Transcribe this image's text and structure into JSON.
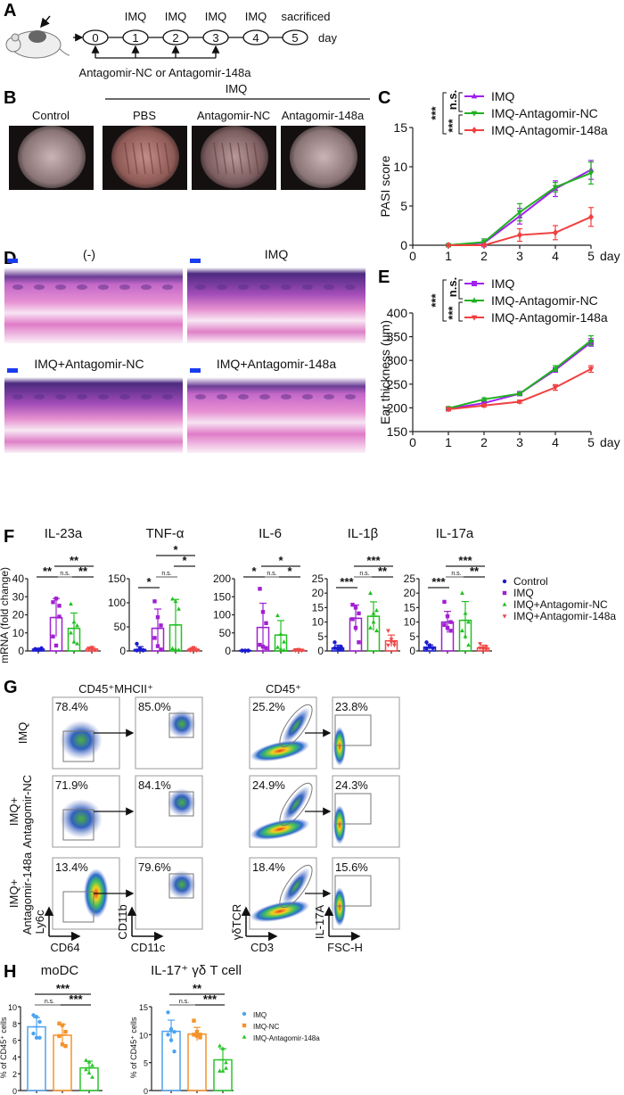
{
  "panel_labels": {
    "A": "A",
    "B": "B",
    "C": "C",
    "D": "D",
    "E": "E",
    "F": "F",
    "G": "G",
    "H": "H"
  },
  "panel_a": {
    "days": [
      "0",
      "1",
      "2",
      "3",
      "4",
      "5"
    ],
    "top_labels": [
      "IMQ",
      "IMQ",
      "IMQ",
      "IMQ",
      "sacrificed"
    ],
    "day_label": "day",
    "treatment_label": "Antagomir-NC or Antagomir-148a"
  },
  "panel_b": {
    "group_header": "IMQ",
    "photo_labels": [
      "Control",
      "PBS",
      "Antagomir-NC",
      "Antagomir-148a"
    ]
  },
  "panel_d": {
    "labels": [
      "(-)",
      "IMQ",
      "IMQ+Antagomir-NC",
      "IMQ+Antagomir-148a"
    ]
  },
  "panel_g": {
    "headers": [
      "CD45⁺MHCII⁺",
      "CD45⁺"
    ],
    "row_labels": [
      [
        "IMQ",
        ""
      ],
      [
        "IMQ+",
        "Antagomir-NC"
      ],
      [
        "IMQ+",
        "Antagomir-148a"
      ]
    ],
    "percentages": [
      [
        "78.4%",
        "85.0%",
        "25.2%",
        "23.8%"
      ],
      [
        "71.9%",
        "84.1%",
        "24.9%",
        "24.3%"
      ],
      [
        "13.4%",
        "79.6%",
        "18.4%",
        "15.6%"
      ]
    ],
    "axis_labels": [
      {
        "x": "CD64",
        "y": "Ly6c"
      },
      {
        "x": "CD11c",
        "y": "CD11b"
      },
      {
        "x": "CD3",
        "y": "γδTCR"
      },
      {
        "x": "FSC-H",
        "y": "IL-17A"
      }
    ]
  },
  "chart_data": [
    {
      "id": "C",
      "type": "line",
      "ylabel": "PASI score",
      "xlabel": "day",
      "x": [
        1,
        2,
        3,
        4,
        5
      ],
      "xlim": [
        0,
        5
      ],
      "xticks": [
        0,
        1,
        2,
        3,
        4,
        5
      ],
      "ylim": [
        0,
        15
      ],
      "yticks": [
        0,
        5,
        10,
        15
      ],
      "legend": "top-right",
      "significance": [
        "***",
        "n.s.",
        "***"
      ],
      "series": [
        {
          "name": "IMQ",
          "color": "#a020f0",
          "marker": "triangle-up",
          "values": [
            0,
            0.3,
            3.7,
            7.2,
            9.6
          ],
          "errors": [
            0.1,
            0.5,
            1.0,
            1.0,
            1.2
          ]
        },
        {
          "name": "IMQ-Antagomir-NC",
          "color": "#22b022",
          "marker": "triangle-down",
          "values": [
            0,
            0.4,
            4.2,
            7.4,
            9.2
          ],
          "errors": [
            0.2,
            0.4,
            1.1,
            0.6,
            1.4
          ]
        },
        {
          "name": "IMQ-Antagomir-148a",
          "color": "#f04040",
          "marker": "diamond",
          "values": [
            0,
            0,
            1.3,
            1.6,
            3.6
          ],
          "errors": [
            0,
            0,
            0.8,
            0.9,
            1.2
          ]
        }
      ]
    },
    {
      "id": "E",
      "type": "line",
      "ylabel": "Ear thickness (µm)",
      "xlabel": "day",
      "x": [
        1,
        2,
        3,
        4,
        5
      ],
      "xlim": [
        0,
        5
      ],
      "xticks": [
        0,
        1,
        2,
        3,
        4,
        5
      ],
      "ylim": [
        150,
        400
      ],
      "yticks": [
        150,
        200,
        250,
        300,
        350,
        400
      ],
      "legend": "top-right",
      "significance": [
        "***",
        "n.s.",
        "***"
      ],
      "series": [
        {
          "name": "IMQ",
          "color": "#a020f0",
          "marker": "square",
          "values": [
            198,
            210,
            230,
            280,
            338
          ],
          "errors": [
            3,
            3,
            3,
            5,
            8
          ]
        },
        {
          "name": "IMQ-Antagomir-NC",
          "color": "#22b022",
          "marker": "triangle-up",
          "values": [
            199,
            218,
            230,
            283,
            342
          ],
          "errors": [
            3,
            3,
            3,
            6,
            10
          ]
        },
        {
          "name": "IMQ-Antagomir-148a",
          "color": "#f04040",
          "marker": "triangle-down",
          "values": [
            197,
            205,
            213,
            243,
            282
          ],
          "errors": [
            3,
            3,
            3,
            6,
            7
          ]
        }
      ]
    },
    {
      "id": "F",
      "type": "bar",
      "ylabel": "mRNA (fold change)",
      "categories": [
        "Control",
        "IMQ",
        "IMQ+Antagomir-NC",
        "IMQ+Antagomir-148a"
      ],
      "colors": [
        "#1a1ad0",
        "#a020d0",
        "#22c022",
        "#f04848"
      ],
      "markers": [
        "circle",
        "square",
        "triangle-up",
        "triangle-down"
      ],
      "legend": "right",
      "panels": [
        {
          "title": "IL-23a",
          "ylim": [
            0,
            40
          ],
          "yticks": [
            0,
            10,
            20,
            30,
            40
          ],
          "values": [
            1,
            18.5,
            12.5,
            1
          ],
          "errors": [
            0.5,
            10.5,
            8.5,
            1
          ],
          "points": [
            [
              1,
              0.5,
              1.5,
              1,
              0.8,
              1.2
            ],
            [
              27,
              29,
              25,
              8,
              3,
              19
            ],
            [
              26,
              16,
              14,
              10,
              5,
              4
            ],
            [
              1,
              2,
              0.5,
              1.5,
              1,
              0.5
            ]
          ],
          "significance": [
            {
              "a": 0,
              "b": 1,
              "text": "**",
              "level": 1
            },
            {
              "a": 1,
              "b": 2,
              "text": "n.s.",
              "level": 1
            },
            {
              "a": 2,
              "b": 3,
              "text": "**",
              "level": 1
            },
            {
              "a": 1,
              "b": 3,
              "text": "**",
              "level": 2
            }
          ]
        },
        {
          "title": "TNF-α",
          "ylim": [
            0,
            150
          ],
          "yticks": [
            0,
            50,
            100,
            150
          ],
          "values": [
            3,
            47,
            54,
            3
          ],
          "errors": [
            6,
            40,
            53,
            4
          ],
          "points": [
            [
              15,
              5,
              2,
              1,
              3,
              1
            ],
            [
              103,
              70,
              53,
              27,
              10,
              3
            ],
            [
              108,
              103,
              87,
              5,
              3,
              2
            ],
            [
              3,
              7,
              2,
              1,
              4,
              1
            ]
          ],
          "significance": [
            {
              "a": 0,
              "b": 1,
              "text": "*",
              "level": 0
            },
            {
              "a": 1,
              "b": 2,
              "text": "n.s.",
              "level": 1
            },
            {
              "a": 2,
              "b": 3,
              "text": "*",
              "level": 2
            },
            {
              "a": 1,
              "b": 3,
              "text": "*",
              "level": 3
            }
          ]
        },
        {
          "title": "IL-6",
          "ylim": [
            0,
            200
          ],
          "yticks": [
            0,
            50,
            100,
            150,
            200
          ],
          "values": [
            1,
            65,
            44,
            2
          ],
          "errors": [
            1,
            67,
            40,
            2
          ],
          "points": [
            [
              1,
              1,
              1,
              1,
              1,
              1
            ],
            [
              172,
              108,
              77,
              17,
              12,
              8
            ],
            [
              98,
              47,
              25,
              10,
              5,
              2
            ],
            [
              3,
              1,
              2,
              1,
              4,
              1
            ]
          ],
          "significance": [
            {
              "a": 0,
              "b": 1,
              "text": "*",
              "level": 1
            },
            {
              "a": 1,
              "b": 2,
              "text": "n.s.",
              "level": 1
            },
            {
              "a": 2,
              "b": 3,
              "text": "*",
              "level": 1
            },
            {
              "a": 1,
              "b": 3,
              "text": "*",
              "level": 2
            }
          ]
        },
        {
          "title": "IL-1β",
          "ylim": [
            0,
            25
          ],
          "yticks": [
            0,
            5,
            10,
            15,
            20,
            25
          ],
          "values": [
            1,
            11.3,
            12,
            3.5
          ],
          "errors": [
            1,
            4.6,
            5,
            2
          ],
          "points": [
            [
              3,
              1,
              0.5,
              1,
              0.8,
              1.5
            ],
            [
              16,
              15,
              13,
              11,
              8,
              3
            ],
            [
              20,
              13,
              14,
              8,
              10,
              7
            ],
            [
              7,
              4,
              3,
              2,
              3,
              2
            ]
          ],
          "significance": [
            {
              "a": 0,
              "b": 1,
              "text": "***",
              "level": 0
            },
            {
              "a": 1,
              "b": 2,
              "text": "n.s.",
              "level": 1
            },
            {
              "a": 2,
              "b": 3,
              "text": "**",
              "level": 1
            },
            {
              "a": 1,
              "b": 3,
              "text": "***",
              "level": 2
            }
          ]
        },
        {
          "title": "IL-17a",
          "ylim": [
            0,
            25
          ],
          "yticks": [
            0,
            5,
            10,
            15,
            20,
            25
          ],
          "values": [
            1.3,
            10,
            10.6,
            1
          ],
          "errors": [
            0.8,
            3.7,
            6.5,
            1
          ],
          "points": [
            [
              3,
              1.5,
              1,
              0.8,
              2,
              1
            ],
            [
              17,
              12,
              10,
              9,
              8,
              7
            ],
            [
              20,
              13,
              10,
              7,
              5,
              2
            ],
            [
              2.5,
              1,
              0.5,
              1,
              0.5,
              1.5
            ]
          ],
          "significance": [
            {
              "a": 0,
              "b": 1,
              "text": "***",
              "level": 0
            },
            {
              "a": 1,
              "b": 2,
              "text": "n.s.",
              "level": 1
            },
            {
              "a": 2,
              "b": 3,
              "text": "**",
              "level": 1
            },
            {
              "a": 1,
              "b": 3,
              "text": "***",
              "level": 2
            }
          ]
        }
      ]
    },
    {
      "id": "H",
      "type": "bar",
      "ylabel": "% of CD45⁺ cells",
      "categories": [
        "IMQ",
        "IMQ-NC",
        "IMQ-Antagomir-148a"
      ],
      "colors": [
        "#4da3f0",
        "#f5922a",
        "#2cc52c"
      ],
      "markers": [
        "circle",
        "square",
        "triangle-up"
      ],
      "legend": "right",
      "panels": [
        {
          "title": "moDC",
          "ylim": [
            0,
            10
          ],
          "yticks": [
            0,
            2,
            4,
            6,
            8,
            10
          ],
          "values": [
            7.6,
            6.6,
            2.7
          ],
          "errors": [
            1.1,
            1.3,
            0.8
          ],
          "points": [
            [
              9,
              8.8,
              8.2,
              6.8,
              6.3,
              6.3
            ],
            [
              8,
              7.8,
              7,
              6.5,
              5.5,
              5.3
            ],
            [
              3.6,
              3.4,
              3,
              2.5,
              2.1,
              1.6
            ]
          ],
          "significance": [
            {
              "a": 0,
              "b": 1,
              "text": "n.s.",
              "level": 1
            },
            {
              "a": 1,
              "b": 2,
              "text": "***",
              "level": 1
            },
            {
              "a": 0,
              "b": 2,
              "text": "***",
              "level": 2
            }
          ]
        },
        {
          "title": "IL-17⁺ γδ T cell",
          "ylim": [
            0,
            15
          ],
          "yticks": [
            0,
            5,
            10,
            15
          ],
          "values": [
            10.6,
            10.1,
            5.5
          ],
          "errors": [
            2,
            1.2,
            2
          ],
          "points": [
            [
              14,
              11,
              10.5,
              10,
              9,
              7
            ],
            [
              12.5,
              10.5,
              10,
              10,
              9.8,
              9.5
            ],
            [
              8,
              7.5,
              5,
              3.5,
              3.5,
              4
            ]
          ],
          "significance": [
            {
              "a": 0,
              "b": 1,
              "text": "n.s.",
              "level": 1
            },
            {
              "a": 1,
              "b": 2,
              "text": "***",
              "level": 1
            },
            {
              "a": 0,
              "b": 2,
              "text": "**",
              "level": 2
            }
          ]
        }
      ]
    }
  ]
}
